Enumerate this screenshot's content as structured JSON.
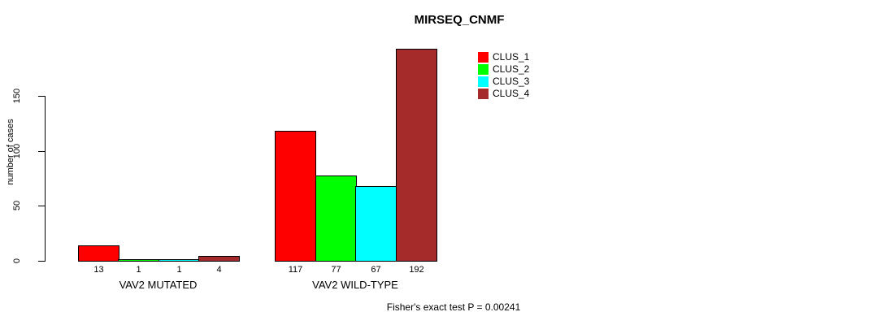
{
  "chart_data": {
    "type": "bar",
    "title": "MIRSEQ_CNMF",
    "ylabel": "number of cases",
    "xlabel": "",
    "groups": [
      "VAV2 MUTATED",
      "VAV2 WILD-TYPE"
    ],
    "series": [
      {
        "name": "CLUS_1",
        "color": "#FF0000",
        "values": [
          13,
          117
        ]
      },
      {
        "name": "CLUS_2",
        "color": "#00FF00",
        "values": [
          1,
          77
        ]
      },
      {
        "name": "CLUS_3",
        "color": "#00FFFF",
        "values": [
          1,
          67
        ]
      },
      {
        "name": "CLUS_4",
        "color": "#A52A2A",
        "values": [
          4,
          192
        ]
      }
    ],
    "yticks": [
      0,
      50,
      100,
      150
    ],
    "ylim": [
      0,
      195
    ],
    "grid": false,
    "legend_position": "top-right",
    "bar_borders": "black",
    "annotation": "Fisher's exact test P = 0.00241"
  }
}
